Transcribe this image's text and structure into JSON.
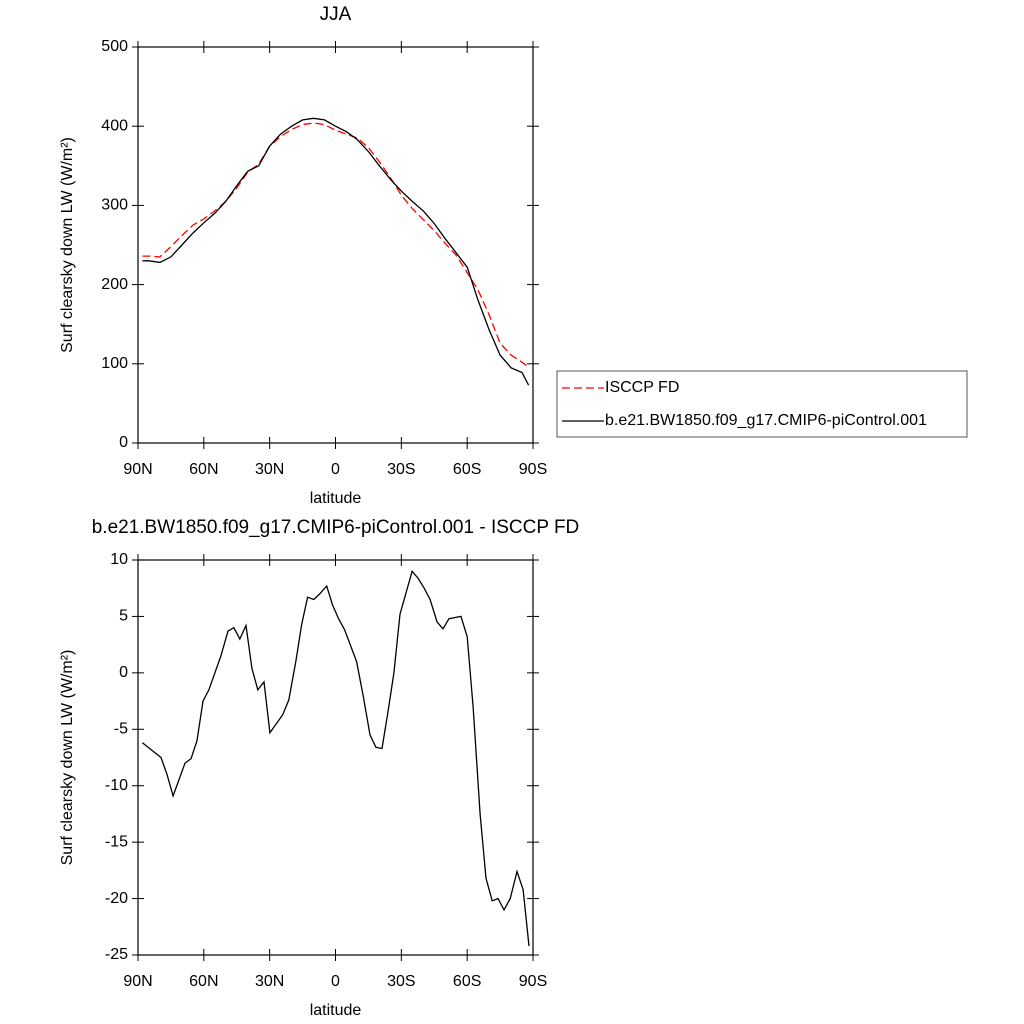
{
  "chart_data": [
    {
      "type": "line",
      "title": "JJA",
      "xlabel": "latitude",
      "ylabel": "Surf clearsky down LW (W/m²)",
      "x": [
        88,
        85,
        80,
        75,
        70,
        65,
        60,
        55,
        50,
        45,
        40,
        35,
        30,
        25,
        20,
        15,
        10,
        5,
        0,
        -5,
        -10,
        -15,
        -20,
        -25,
        -30,
        -35,
        -40,
        -45,
        -50,
        -55,
        -60,
        -65,
        -70,
        -75,
        -80,
        -85,
        -88
      ],
      "series": [
        {
          "name": "ISCCP FD",
          "color": "#ff0000",
          "dashed": true,
          "values": [
            236,
            236,
            235,
            248,
            262,
            275,
            283,
            293,
            305,
            322,
            342,
            352,
            375,
            387,
            396,
            402,
            404,
            402,
            395,
            390,
            385,
            373,
            355,
            335,
            313,
            296,
            282,
            268,
            252,
            237,
            215,
            193,
            162,
            126,
            111,
            102,
            96
          ]
        },
        {
          "name": "b.e21.BW1850.f09_g17.CMIP6-piControl.001",
          "color": "#000000",
          "dashed": false,
          "values": [
            230,
            230,
            228,
            235,
            250,
            265,
            278,
            290,
            305,
            325,
            343,
            350,
            375,
            390,
            400,
            408,
            410,
            408,
            400,
            393,
            383,
            368,
            350,
            333,
            318,
            305,
            293,
            277,
            258,
            240,
            222,
            180,
            143,
            111,
            95,
            89,
            73
          ]
        }
      ],
      "xlim": [
        90,
        -90
      ],
      "xticks": [
        {
          "value": 90,
          "label": "90N"
        },
        {
          "value": 60,
          "label": "60N"
        },
        {
          "value": 30,
          "label": "30N"
        },
        0,
        {
          "value": -30,
          "label": "30S"
        },
        {
          "value": -60,
          "label": "60S"
        },
        {
          "value": -90,
          "label": "90S"
        }
      ],
      "ylim": [
        0,
        500
      ],
      "yticks": [
        0,
        100,
        200,
        300,
        400,
        500
      ],
      "legend_position": "right"
    },
    {
      "type": "line",
      "title": "b.e21.BW1850.f09_g17.CMIP6-piControl.001 - ISCCP FD",
      "xlabel": "latitude",
      "ylabel": "Surf clearsky down LW (W/m²)",
      "x": [
        88,
        85.4,
        79.5,
        76.8,
        74,
        68.6,
        65.8,
        63.1,
        60.4,
        57.7,
        52.2,
        49,
        46.3,
        43.6,
        40.8,
        38.1,
        35.4,
        32.6,
        29.9,
        24,
        21.3,
        18.1,
        15.4,
        12.7,
        9.9,
        7.2,
        4,
        1.3,
        -1.4,
        -4.2,
        -9.6,
        -12.6,
        -15.7,
        -18.4,
        -21.2,
        -23.9,
        -26.6,
        -29.4,
        -34.9,
        -37.6,
        -40.4,
        -43.1,
        -46.3,
        -49,
        -51.7,
        -57.2,
        -60,
        -62.7,
        -65.9,
        -68.6,
        -71.4,
        -74.1,
        -76.8,
        -79.6,
        -82.7,
        -85.5,
        -88.2
      ],
      "values": [
        -6.2,
        -6.6,
        -7.5,
        -9,
        -10.9,
        -8,
        -7.6,
        -6,
        -2.5,
        -1.5,
        1.5,
        3.7,
        4,
        3,
        4.2,
        0.4,
        -1.5,
        -0.8,
        -5.3,
        -3.7,
        -2.4,
        1,
        4.3,
        6.7,
        6.5,
        7,
        7.7,
        6,
        4.8,
        3.8,
        1,
        -2,
        -5.5,
        -6.6,
        -6.7,
        -3.5,
        0,
        5.2,
        9,
        8.4,
        7.5,
        6.5,
        4.5,
        3.9,
        4.8,
        5,
        3.2,
        -3,
        -12.5,
        -18.2,
        -20.2,
        -20,
        -21,
        -20,
        -17.6,
        -19.2,
        -24.2
      ],
      "color": "#000000",
      "xlim": [
        90,
        -90
      ],
      "xticks": [
        {
          "value": 90,
          "label": "90N"
        },
        {
          "value": 60,
          "label": "60N"
        },
        {
          "value": 30,
          "label": "30N"
        },
        0,
        {
          "value": -30,
          "label": "30S"
        },
        {
          "value": -60,
          "label": "60S"
        },
        {
          "value": -90,
          "label": "90S"
        }
      ],
      "ylim": [
        -25,
        10
      ],
      "yticks": [
        -25,
        -20,
        -15,
        -10,
        -5,
        0,
        5,
        10
      ]
    }
  ]
}
